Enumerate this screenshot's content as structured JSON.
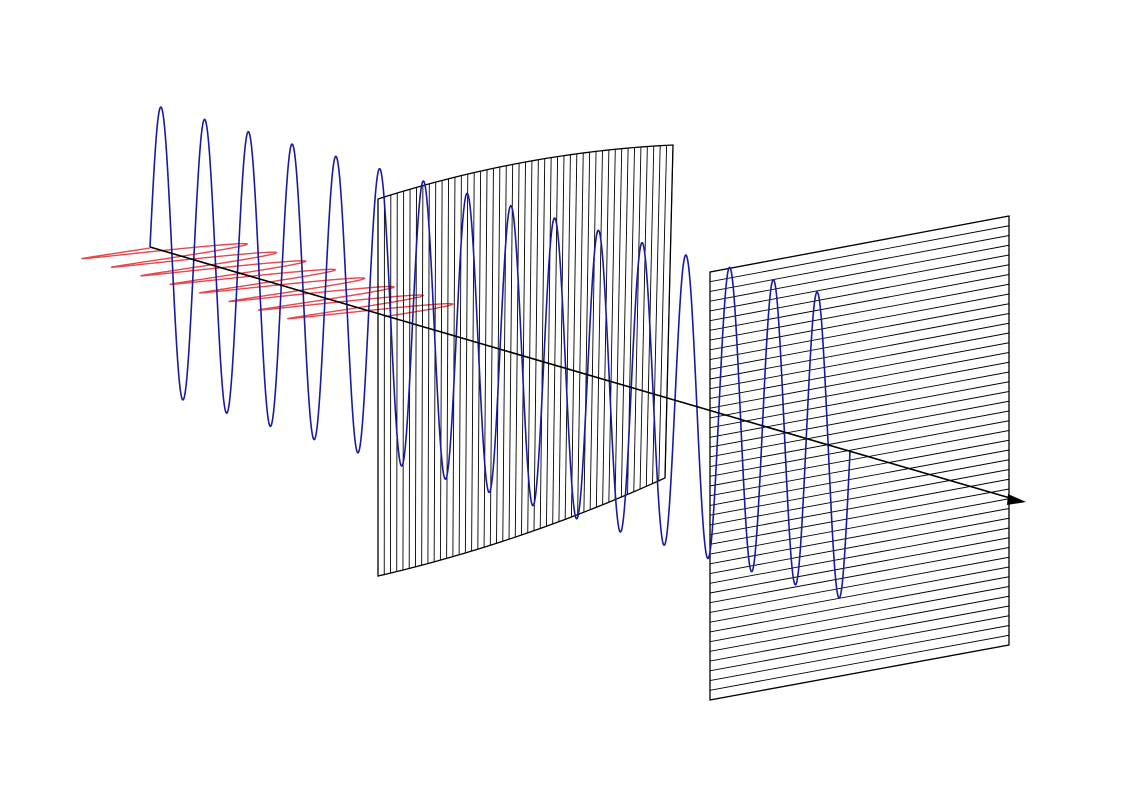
{
  "diagram": {
    "subject": "polarization",
    "components": {
      "vertical_wave": {
        "color": "#1a1a9e",
        "cycles_before_filter": 8,
        "cycles_total": 16
      },
      "horizontal_wave": {
        "color": "#e8474b",
        "cycles": 8,
        "ends_at_filter": true
      },
      "vertical_polarizer": {
        "line_orientation": "vertical",
        "line_count": 46,
        "stroke": "#000000"
      },
      "horizontal_polarizer": {
        "line_orientation": "horizontal",
        "line_count": 44,
        "stroke": "#000000"
      },
      "propagation_axis": {
        "arrowhead": true,
        "stroke": "#000000"
      }
    }
  }
}
